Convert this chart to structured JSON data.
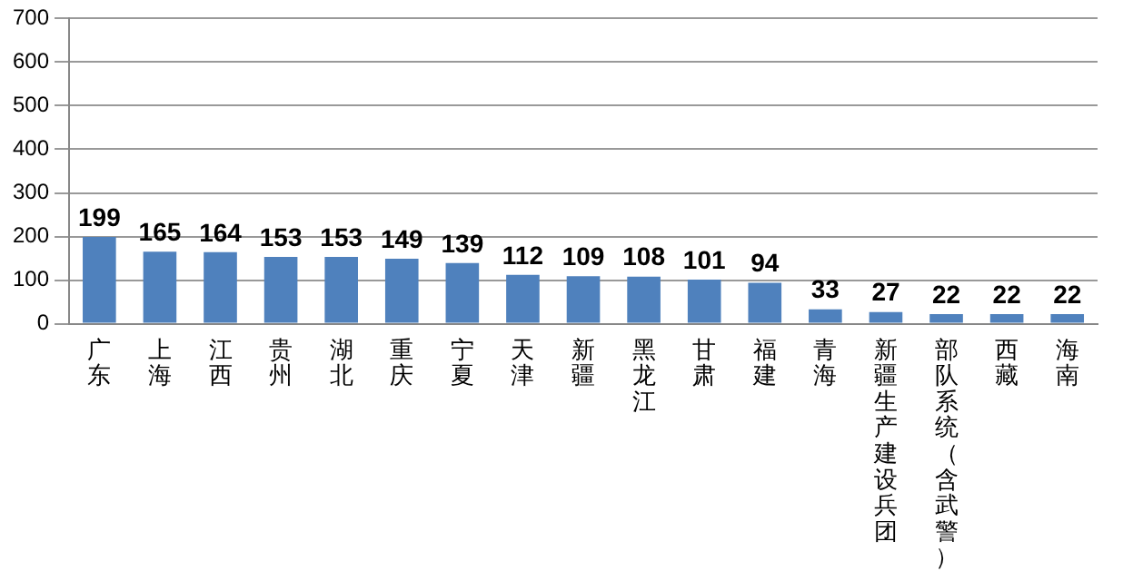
{
  "chart_data": {
    "type": "bar",
    "categories": [
      "广东",
      "上海",
      "江西",
      "贵州",
      "湖北",
      "重庆",
      "宁夏",
      "天津",
      "新疆",
      "黑龙江",
      "甘肃",
      "福建",
      "青海",
      "新疆生产建设兵团",
      "部队系统（含武警）",
      "西藏",
      "海南"
    ],
    "values": [
      199,
      165,
      164,
      153,
      153,
      149,
      139,
      112,
      109,
      108,
      101,
      94,
      33,
      27,
      22,
      22,
      22
    ],
    "color": "#4f81bd",
    "ylim": [
      0,
      700
    ],
    "yticks": [
      0,
      100,
      200,
      300,
      400,
      500,
      600,
      700
    ],
    "grid": "y",
    "data_labels": true
  }
}
